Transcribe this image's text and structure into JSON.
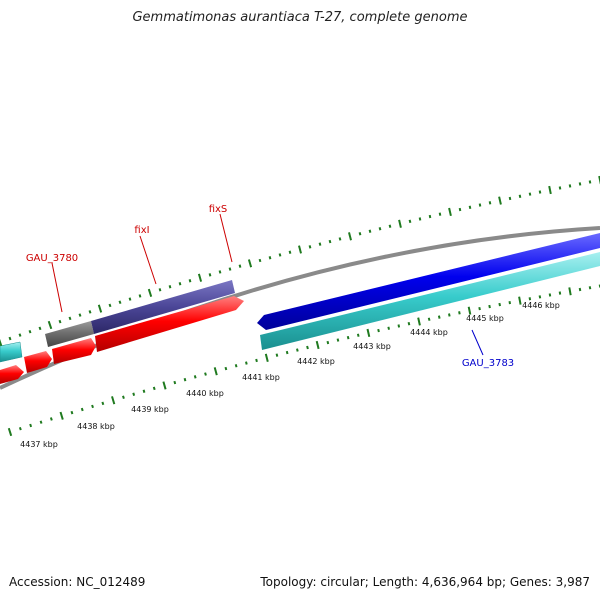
{
  "title": "Gemmatimonas aurantiaca T-27, complete genome",
  "footer": {
    "accession": "Accession: NC_012489",
    "summary": "Topology: circular; Length: 4,636,964 bp; Genes: 3,987"
  },
  "colors": {
    "backbone": "#888888",
    "tick": "#1f7a1f",
    "forward_gene": "#ff0000",
    "forward_blue": "#3f3a8c",
    "forward_gray": "#6b6b6b",
    "reverse_gene": "#0000ff",
    "reverse_cyan": "#33cccc",
    "label_forward": "#cc0000",
    "label_reverse": "#0000cc"
  },
  "scale": {
    "labels": [
      "4437 kbp",
      "4438 kbp",
      "4439 kbp",
      "4440 kbp",
      "4441 kbp",
      "4442 kbp",
      "4443 kbp",
      "4444 kbp",
      "4445 kbp",
      "4446 kbp"
    ]
  },
  "gene_labels": [
    {
      "name": "GAU_3780",
      "strand": "forward"
    },
    {
      "name": "fixI",
      "strand": "forward"
    },
    {
      "name": "fixS",
      "strand": "forward"
    },
    {
      "name": "GAU_3783",
      "strand": "reverse"
    }
  ]
}
